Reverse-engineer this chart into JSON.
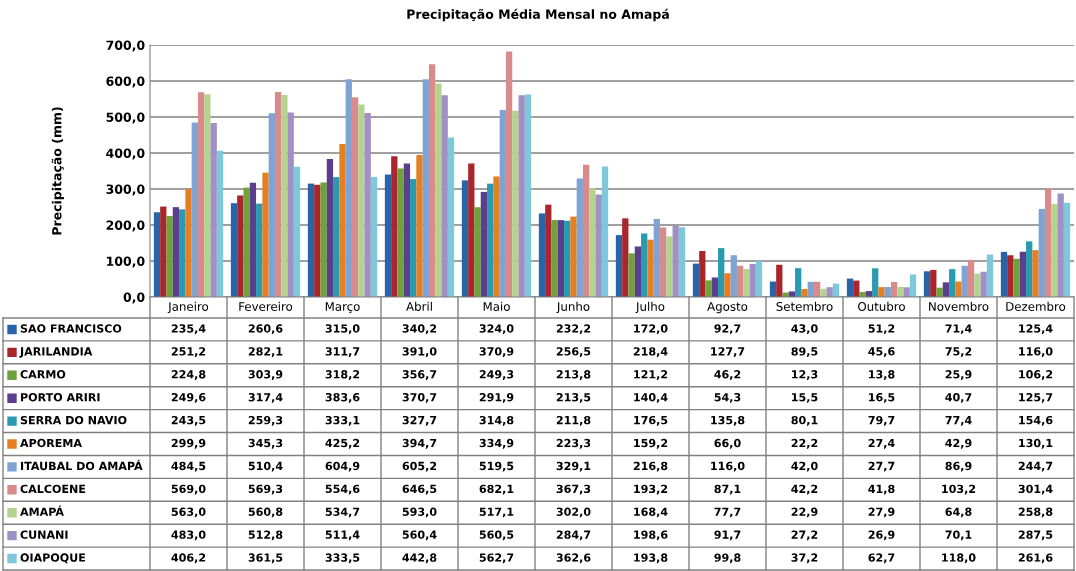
{
  "chart_data": {
    "type": "bar",
    "title": "Precipitação Média Mensal no Amapá",
    "ylabel": "Precipitação (mm)",
    "categories": [
      "Janeiro",
      "Fevereiro",
      "Março",
      "Abril",
      "Maio",
      "Junho",
      "Julho",
      "Agosto",
      "Setembro",
      "Outubro",
      "Novembro",
      "Dezembro"
    ],
    "series": [
      {
        "name": "SAO FRANCISCO",
        "color": "#2a64a8",
        "values": [
          235.4,
          260.6,
          315.0,
          340.2,
          324.0,
          232.2,
          172.0,
          92.7,
          43.0,
          51.2,
          71.4,
          125.4
        ],
        "value_labels": [
          "235,4",
          "260,6",
          "315,0",
          "340,2",
          "324,0",
          "232,2",
          "172,0",
          "92,7",
          "43,0",
          "51,2",
          "71,4",
          "125,4"
        ]
      },
      {
        "name": "JARILANDIA",
        "color": "#a8262c",
        "values": [
          251.2,
          282.1,
          311.7,
          391.0,
          370.9,
          256.5,
          218.4,
          127.7,
          89.5,
          45.6,
          75.2,
          116.0
        ],
        "value_labels": [
          "251,2",
          "282,1",
          "311,7",
          "391,0",
          "370,9",
          "256,5",
          "218,4",
          "127,7",
          "89,5",
          "45,6",
          "75,2",
          "116,0"
        ]
      },
      {
        "name": "CARMO",
        "color": "#6fa23a",
        "values": [
          224.8,
          303.9,
          318.2,
          356.7,
          249.3,
          213.8,
          121.2,
          46.2,
          12.3,
          13.8,
          25.9,
          106.2
        ],
        "value_labels": [
          "224,8",
          "303,9",
          "318,2",
          "356,7",
          "249,3",
          "213,8",
          "121,2",
          "46,2",
          "12,3",
          "13,8",
          "25,9",
          "106,2"
        ]
      },
      {
        "name": "PORTO ARIRI",
        "color": "#5b3f8c",
        "values": [
          249.6,
          317.4,
          383.6,
          370.7,
          291.9,
          213.5,
          140.4,
          54.3,
          15.5,
          16.5,
          40.7,
          125.7
        ],
        "value_labels": [
          "249,6",
          "317,4",
          "383,6",
          "370,7",
          "291,9",
          "213,5",
          "140,4",
          "54,3",
          "15,5",
          "16,5",
          "40,7",
          "125,7"
        ]
      },
      {
        "name": "SERRA DO NAVIO",
        "color": "#2a9ab0",
        "values": [
          243.5,
          259.3,
          333.1,
          327.7,
          314.8,
          211.8,
          176.5,
          135.8,
          80.1,
          79.7,
          77.4,
          154.6
        ],
        "value_labels": [
          "243,5",
          "259,3",
          "333,1",
          "327,7",
          "314,8",
          "211,8",
          "176,5",
          "135,8",
          "80,1",
          "79,7",
          "77,4",
          "154,6"
        ]
      },
      {
        "name": "APOREMA",
        "color": "#e67e22",
        "values": [
          299.9,
          345.3,
          425.2,
          394.7,
          334.9,
          223.3,
          159.2,
          66.0,
          22.2,
          27.4,
          42.9,
          130.1
        ],
        "value_labels": [
          "299,9",
          "345,3",
          "425,2",
          "394,7",
          "334,9",
          "223,3",
          "159,2",
          "66,0",
          "22,2",
          "27,4",
          "42,9",
          "130,1"
        ]
      },
      {
        "name": "ITAUBAL DO AMAPÁ",
        "color": "#7fa4d4",
        "values": [
          484.5,
          510.4,
          604.9,
          605.2,
          519.5,
          329.1,
          216.8,
          116.0,
          42.0,
          27.7,
          86.9,
          244.7
        ],
        "value_labels": [
          "484,5",
          "510,4",
          "604,9",
          "605,2",
          "519,5",
          "329,1",
          "216,8",
          "116,0",
          "42,0",
          "27,7",
          "86,9",
          "244,7"
        ]
      },
      {
        "name": "CALCOENE",
        "color": "#d98b8b",
        "values": [
          569.0,
          569.3,
          554.6,
          646.5,
          682.1,
          367.3,
          193.2,
          87.1,
          42.2,
          41.8,
          103.2,
          301.4
        ],
        "value_labels": [
          "569,0",
          "569,3",
          "554,6",
          "646,5",
          "682,1",
          "367,3",
          "193,2",
          "87,1",
          "42,2",
          "41,8",
          "103,2",
          "301,4"
        ]
      },
      {
        "name": "AMAPÁ",
        "color": "#b5d38f",
        "values": [
          563.0,
          560.8,
          534.7,
          593.0,
          517.1,
          302.0,
          168.4,
          77.7,
          22.9,
          27.9,
          64.8,
          258.8
        ],
        "value_labels": [
          "563,0",
          "560,8",
          "534,7",
          "593,0",
          "517,1",
          "302,0",
          "168,4",
          "77,7",
          "22,9",
          "27,9",
          "64,8",
          "258,8"
        ]
      },
      {
        "name": "CUNANI",
        "color": "#a090c4",
        "values": [
          483.0,
          512.8,
          511.4,
          560.4,
          560.5,
          284.7,
          198.6,
          91.7,
          27.2,
          26.9,
          70.1,
          287.5
        ],
        "value_labels": [
          "483,0",
          "512,8",
          "511,4",
          "560,4",
          "560,5",
          "284,7",
          "198,6",
          "91,7",
          "27,2",
          "26,9",
          "70,1",
          "287,5"
        ]
      },
      {
        "name": "OIAPOQUE",
        "color": "#7ec8dc",
        "values": [
          406.2,
          361.5,
          333.5,
          442.8,
          562.7,
          362.6,
          193.8,
          99.8,
          37.2,
          62.7,
          118.0,
          261.6
        ],
        "value_labels": [
          "406,2",
          "361,5",
          "333,5",
          "442,8",
          "562,7",
          "362,6",
          "193,8",
          "99,8",
          "37,2",
          "62,7",
          "118,0",
          "261,6"
        ]
      }
    ],
    "ylim": [
      0,
      700
    ],
    "yticks": [
      {
        "value": 0,
        "label": "0,0"
      },
      {
        "value": 100,
        "label": "100,0"
      },
      {
        "value": 200,
        "label": "200,0"
      },
      {
        "value": 300,
        "label": "300,0"
      },
      {
        "value": 400,
        "label": "400,0"
      },
      {
        "value": 500,
        "label": "500,0"
      },
      {
        "value": 600,
        "label": "600,0"
      },
      {
        "value": 700,
        "label": "700,0"
      }
    ],
    "grid": "y",
    "legend": "bottom left"
  }
}
